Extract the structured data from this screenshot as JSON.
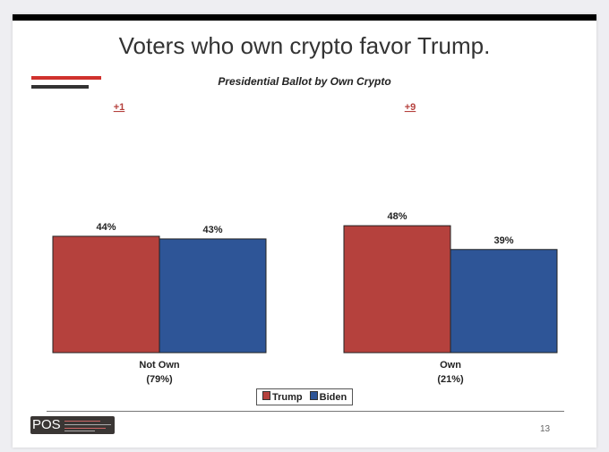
{
  "slide": {
    "title": "Voters who own crypto favor Trump.",
    "page_number": "13",
    "logo_text": "POS"
  },
  "chart_data": {
    "type": "bar",
    "title": "Presidential Ballot by Own Crypto",
    "categories": [
      "Not Own",
      "Own"
    ],
    "category_shares": [
      "(79%)",
      "(21%)"
    ],
    "margins": [
      "+1",
      "+9"
    ],
    "series": [
      {
        "name": "Trump",
        "values": [
          44,
          48
        ],
        "labels": [
          "44%",
          "48%"
        ],
        "color": "#b5413d"
      },
      {
        "name": "Biden",
        "values": [
          43,
          39
        ],
        "labels": [
          "43%",
          "39%"
        ],
        "color": "#2e5597"
      }
    ],
    "ylim": [
      0,
      60
    ],
    "grid": false,
    "legend": "bottom"
  }
}
